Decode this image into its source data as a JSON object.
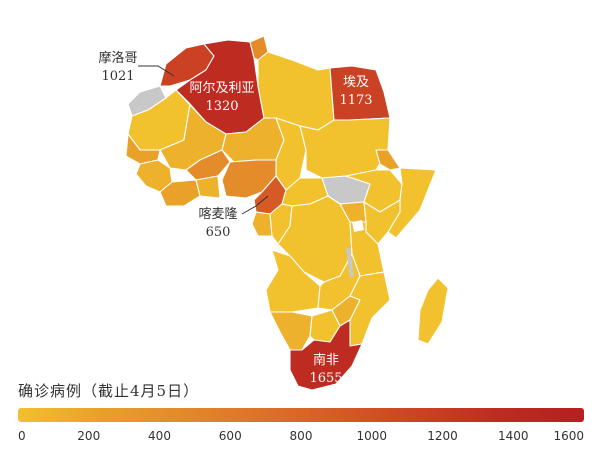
{
  "map": {
    "colors": {
      "c0": "#f2c12e",
      "c1": "#eeb12b",
      "c2": "#e9a12a",
      "c3": "#e48b2a",
      "c4": "#de7328",
      "c5": "#d55a25",
      "c6": "#ca4223",
      "c7": "#be2b21",
      "nodata": "#c8c8c8",
      "ocean": "#ffffff"
    },
    "labels": [
      {
        "name": "摩洛哥",
        "value": "1021"
      },
      {
        "name": "阿尔及利亚",
        "value": "1320"
      },
      {
        "name": "埃及",
        "value": "1173"
      },
      {
        "name": "喀麦隆",
        "value": "650"
      },
      {
        "name": "南非",
        "value": "1655"
      }
    ]
  },
  "legend": {
    "title": "确诊病例（截止4月5日）",
    "ticks": [
      "0",
      "200",
      "400",
      "600",
      "800",
      "1000",
      "1200",
      "1400",
      "1600"
    ],
    "gradient": [
      "#f2c12e",
      "#e9a12a",
      "#e48b2a",
      "#de7328",
      "#d55a25",
      "#ca4223",
      "#be2b21",
      "#b51f20"
    ]
  }
}
